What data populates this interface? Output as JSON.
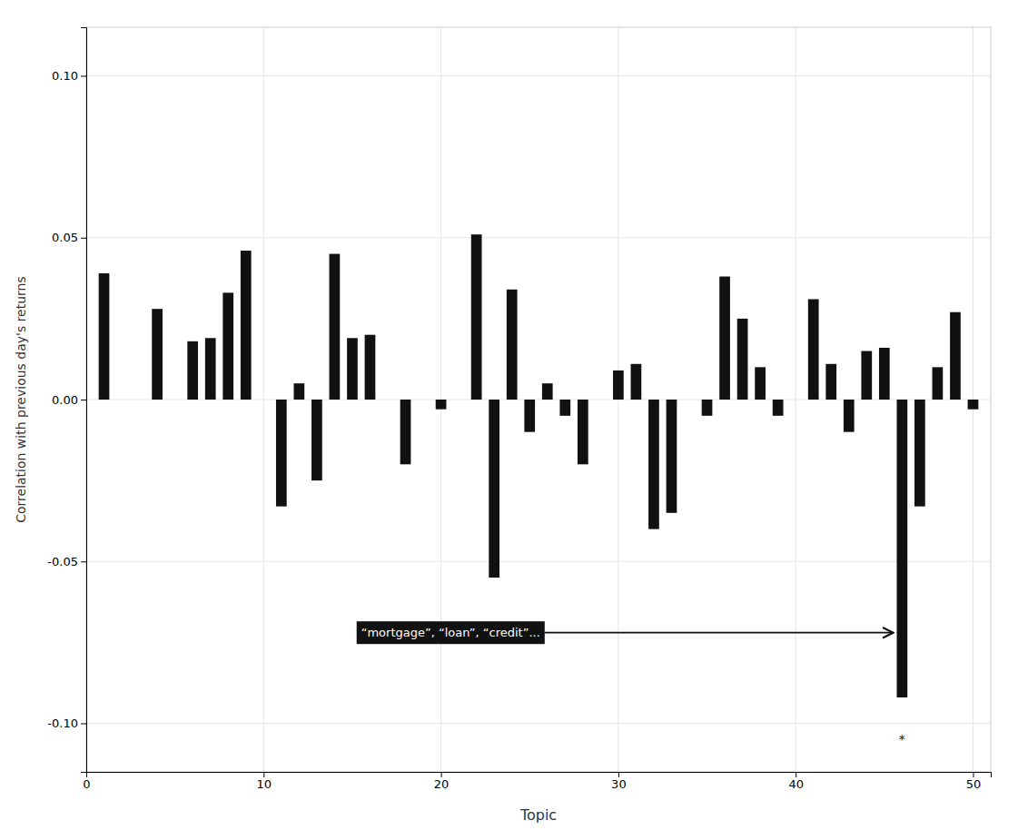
{
  "chart_data": {
    "type": "bar",
    "x": [
      1,
      2,
      3,
      4,
      5,
      6,
      7,
      8,
      9,
      10,
      11,
      12,
      13,
      14,
      15,
      16,
      17,
      18,
      19,
      20,
      21,
      22,
      23,
      24,
      25,
      26,
      27,
      28,
      29,
      30,
      31,
      32,
      33,
      34,
      35,
      36,
      37,
      38,
      39,
      40,
      41,
      42,
      43,
      44,
      45,
      46,
      47,
      48,
      49,
      50
    ],
    "values": [
      0.039,
      0.0,
      0.0,
      0.028,
      0.0,
      0.018,
      0.019,
      0.033,
      0.046,
      0.0,
      -0.033,
      0.005,
      -0.025,
      0.045,
      0.019,
      0.02,
      0.0,
      -0.02,
      0.0,
      -0.003,
      0.0,
      0.051,
      -0.055,
      0.034,
      -0.01,
      0.005,
      -0.005,
      -0.02,
      0.0,
      0.009,
      0.011,
      -0.04,
      -0.035,
      0.0,
      -0.005,
      0.038,
      0.025,
      0.01,
      -0.005,
      0.0,
      0.031,
      0.011,
      -0.01,
      0.015,
      0.016,
      -0.092,
      -0.033,
      0.01,
      0.027,
      -0.003
    ],
    "color": "#111111",
    "xlabel": "Topic",
    "ylabel": "Correlation with previous day's returns",
    "xlim": [
      0,
      51
    ],
    "xticks": [
      0,
      10,
      20,
      30,
      40,
      50
    ],
    "ylim": [
      -0.115,
      0.115
    ],
    "yticks": [
      {
        "value": -0.1,
        "label": "-0.10"
      },
      -0.05,
      {
        "value": 0,
        "label": "0.00"
      },
      0.05,
      {
        "value": 0.1,
        "label": "0.10"
      }
    ],
    "grid": true,
    "annotations": [
      {
        "text": "“mortgage”, “loan”, “credit”...",
        "x": 15.5,
        "y": -0.072,
        "arrow_to": [
          45.5,
          -0.072
        ]
      },
      {
        "text": "*",
        "x": 46,
        "y": -0.105
      }
    ]
  }
}
